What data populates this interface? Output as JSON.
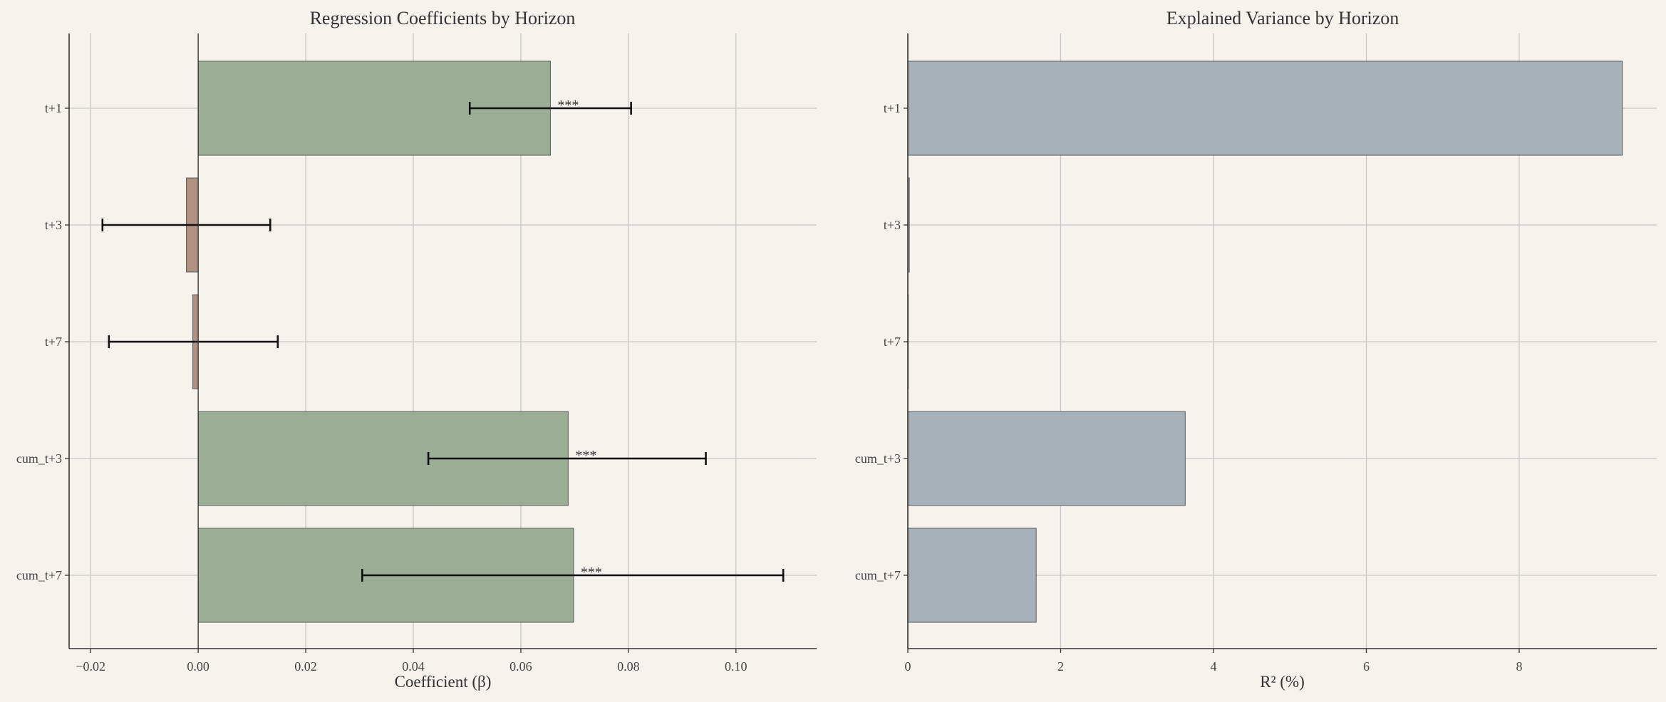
{
  "chart_data": [
    {
      "type": "bar",
      "orientation": "horizontal",
      "title": "Regression Coefficients by Horizon",
      "xlabel": "Coefficient (β)",
      "ylabel": "",
      "xlim": [
        -0.024,
        0.115
      ],
      "xticks": [
        -0.02,
        0.0,
        0.02,
        0.04,
        0.06,
        0.08,
        0.1
      ],
      "xtick_labels": [
        "−0.02",
        "0.00",
        "0.02",
        "0.04",
        "0.06",
        "0.08",
        "0.10"
      ],
      "categories": [
        "t+1",
        "t+3",
        "t+7",
        "cum_t+3",
        "cum_t+7"
      ],
      "values": [
        0.0655,
        -0.0022,
        -0.001,
        0.0688,
        0.0698
      ],
      "ci_low": [
        0.0505,
        -0.0178,
        -0.0166,
        0.0428,
        0.0305
      ],
      "ci_high": [
        0.0805,
        0.0134,
        0.0148,
        0.0944,
        0.1088
      ],
      "significance": [
        "***",
        "",
        "",
        "***",
        "***"
      ],
      "grid": true,
      "colors": {
        "positive": "#9aae96",
        "negative": "#b09282",
        "edge": "#5a5a5a"
      }
    },
    {
      "type": "bar",
      "orientation": "horizontal",
      "title": "Explained Variance by Horizon",
      "xlabel": "R² (%)",
      "ylabel": "",
      "xlim": [
        0,
        9.8
      ],
      "xticks": [
        0,
        2,
        4,
        6,
        8
      ],
      "xtick_labels": [
        "0",
        "2",
        "4",
        "6",
        "8"
      ],
      "categories": [
        "t+1",
        "t+3",
        "t+7",
        "cum_t+3",
        "cum_t+7"
      ],
      "values": [
        9.35,
        0.02,
        0.005,
        3.63,
        1.68
      ],
      "grid": true,
      "colors": {
        "bar": "#a6b1b9",
        "edge": "#5a5a5a"
      }
    }
  ]
}
